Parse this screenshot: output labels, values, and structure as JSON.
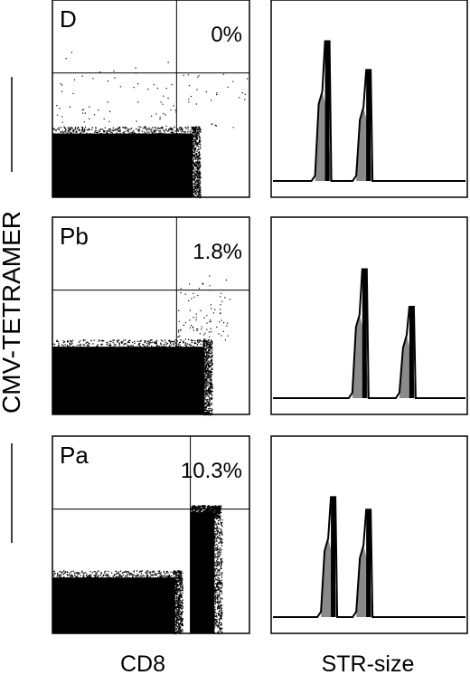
{
  "figure": {
    "y_axis_label": "CMV-TETRAMER",
    "x_axis_label_left": "CD8",
    "x_axis_label_right": "STR-size"
  },
  "chart_data": [
    {
      "type": "scatter",
      "panel": "D",
      "label": "D",
      "percent_label": "0%",
      "xlabel": "CD8",
      "ylabel": "CMV-TETRAMER",
      "quadrant_gate": {
        "x_fraction": 0.63,
        "y_fraction": 0.63
      },
      "populations": [
        {
          "name": "",
          "density": "dense",
          "x_range": [
            0.0,
            0.74
          ],
          "y_range": [
            0.0,
            0.36
          ]
        },
        {
          "name": "",
          "density": "sparse",
          "x_range": [
            0.0,
            1.0
          ],
          "y_range": [
            0.35,
            0.75
          ]
        }
      ],
      "tetramer_positive_percent": 0.0
    },
    {
      "type": "line",
      "panel": "D-STR",
      "xlabel": "STR-size",
      "peaks": [
        {
          "x_fraction": 0.27,
          "height_fraction": 0.78
        },
        {
          "x_fraction": 0.48,
          "height_fraction": 0.62
        }
      ]
    },
    {
      "type": "scatter",
      "panel": "Pb",
      "label": "Pb",
      "percent_label": "1.8%",
      "xlabel": "CD8",
      "ylabel": "CMV-TETRAMER",
      "quadrant_gate": {
        "x_fraction": 0.63,
        "y_fraction": 0.63
      },
      "populations": [
        {
          "name": "",
          "density": "dense",
          "x_range": [
            0.0,
            0.8
          ],
          "y_range": [
            0.0,
            0.38
          ]
        },
        {
          "name": "",
          "density": "sparse",
          "x_range": [
            0.63,
            0.9
          ],
          "y_range": [
            0.38,
            0.72
          ]
        }
      ],
      "tetramer_positive_percent": 1.8
    },
    {
      "type": "line",
      "panel": "Pb-STR",
      "xlabel": "STR-size",
      "peaks": [
        {
          "x_fraction": 0.46,
          "height_fraction": 0.72
        },
        {
          "x_fraction": 0.7,
          "height_fraction": 0.51
        }
      ]
    },
    {
      "type": "scatter",
      "panel": "Pa",
      "label": "Pa",
      "percent_label": "10.3%",
      "xlabel": "CD8",
      "ylabel": "CMV-TETRAMER",
      "quadrant_gate": {
        "x_fraction": 0.7,
        "y_fraction": 0.63
      },
      "populations": [
        {
          "name": "",
          "density": "dense",
          "x_range": [
            0.0,
            0.65
          ],
          "y_range": [
            0.0,
            0.32
          ]
        },
        {
          "name": "",
          "density": "dense",
          "x_range": [
            0.7,
            0.85
          ],
          "y_range": [
            0.0,
            0.65
          ]
        }
      ],
      "tetramer_positive_percent": 10.3
    },
    {
      "type": "line",
      "panel": "Pa-STR",
      "xlabel": "STR-size",
      "peaks": [
        {
          "x_fraction": 0.3,
          "height_fraction": 0.67
        },
        {
          "x_fraction": 0.48,
          "height_fraction": 0.6
        }
      ]
    }
  ]
}
